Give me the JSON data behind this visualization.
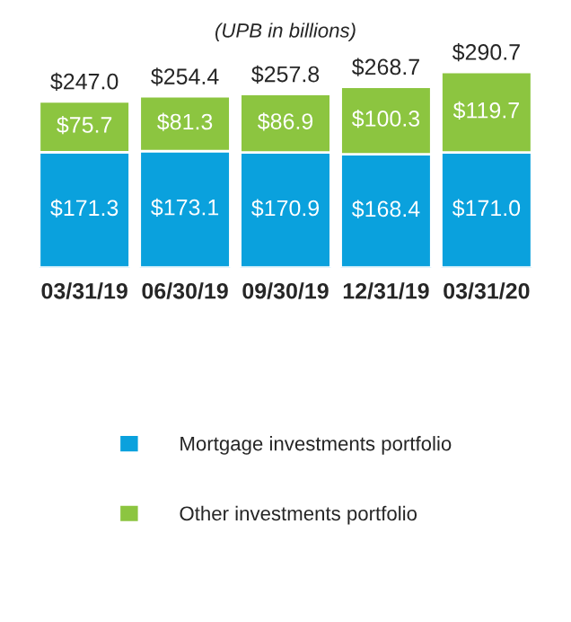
{
  "chart_data": {
    "type": "bar",
    "stacked": true,
    "title": "(UPB in billions)",
    "categories": [
      "03/31/19",
      "06/30/19",
      "09/30/19",
      "12/31/19",
      "03/31/20"
    ],
    "series": [
      {
        "name": "Mortgage investments portfolio",
        "color": "#0aa1dd",
        "values": [
          171.3,
          173.1,
          170.9,
          168.4,
          171.0
        ],
        "value_labels": [
          "$171.3",
          "$173.1",
          "$170.9",
          "$168.4",
          "$171.0"
        ]
      },
      {
        "name": "Other investments portfolio",
        "color": "#8cc540",
        "values": [
          75.7,
          81.3,
          86.9,
          100.3,
          119.7
        ],
        "value_labels": [
          "$75.7",
          "$81.3",
          "$86.9",
          "$100.3",
          "$119.7"
        ]
      }
    ],
    "totals": [
      "$247.0",
      "$254.4",
      "$257.8",
      "$268.7",
      "$290.7"
    ],
    "legend": "bottom",
    "grid": false
  }
}
